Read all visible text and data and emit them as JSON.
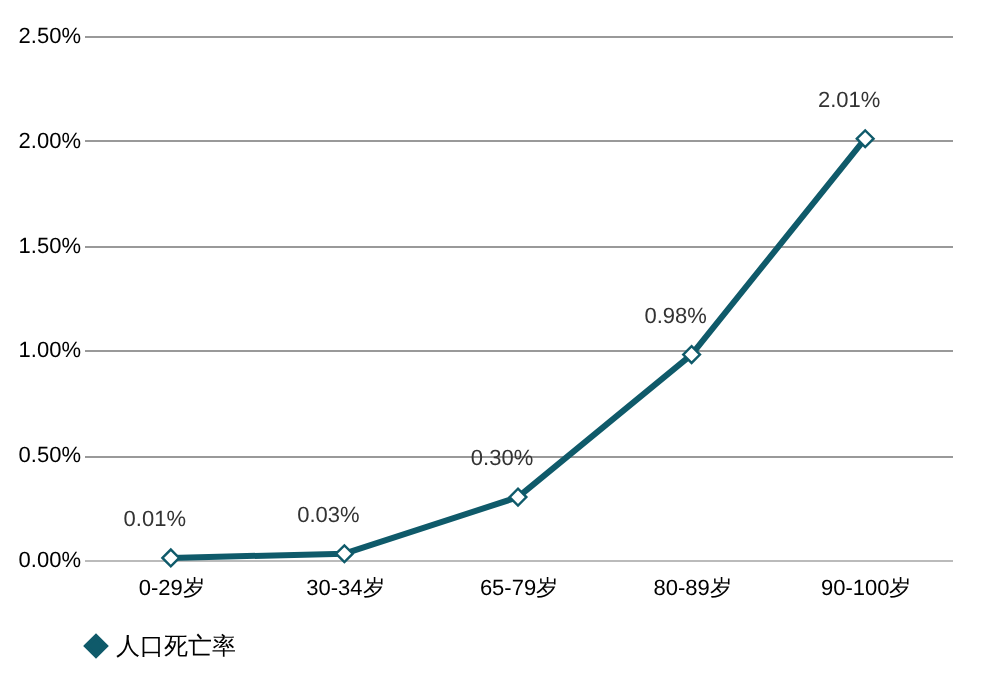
{
  "chart_data": {
    "type": "line",
    "categories": [
      "0-29岁",
      "30-34岁",
      "65-79岁",
      "80-89岁",
      "90-100岁"
    ],
    "series": [
      {
        "name": "人口死亡率",
        "color": "#0f5a6a",
        "values": [
          0.01,
          0.03,
          0.3,
          0.98,
          2.01
        ],
        "value_labels": [
          "0.01%",
          "0.03%",
          "0.30%",
          "0.98%",
          "2.01%"
        ]
      }
    ],
    "ylim": [
      0,
      2.5
    ],
    "yticks": [
      {
        "value": 0,
        "label": "0.00%"
      },
      {
        "value": 0.5,
        "label": "0.50%"
      },
      {
        "value": 1,
        "label": "1.00%"
      },
      {
        "value": 1.5,
        "label": "1.50%"
      },
      {
        "value": 2,
        "label": "2.00%"
      },
      {
        "value": 2.5,
        "label": "2.50%"
      }
    ],
    "grid": "y",
    "legend": "bottom",
    "marker": "diamond",
    "line_style": "solid"
  }
}
